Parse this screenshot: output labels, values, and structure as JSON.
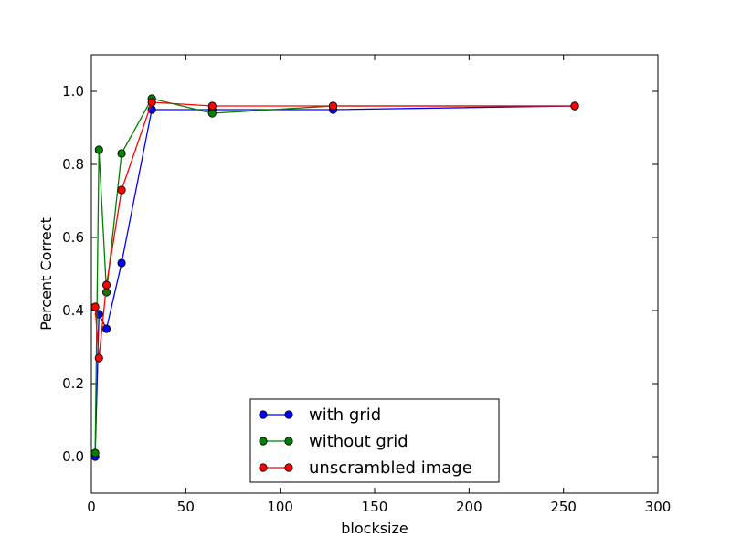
{
  "chart_data": {
    "type": "line",
    "title": "",
    "xlabel": "blocksize",
    "ylabel": "Percent Correct",
    "xlim": [
      0,
      300
    ],
    "ylim": [
      -0.1,
      1.1
    ],
    "x_ticks": [
      "0",
      "50",
      "100",
      "150",
      "200",
      "250",
      "300"
    ],
    "y_ticks": [
      "0.0",
      "0.2",
      "0.4",
      "0.6",
      "0.8",
      "1.0"
    ],
    "grid": false,
    "legend_position": "lower-center",
    "marker": "circle",
    "series": [
      {
        "name": "with grid",
        "color": "#0000ff",
        "points": [
          [
            2,
            0.0
          ],
          [
            4,
            0.39
          ],
          [
            8,
            0.35
          ],
          [
            16,
            0.53
          ],
          [
            32,
            0.95
          ],
          [
            64,
            0.95
          ],
          [
            128,
            0.95
          ],
          [
            256,
            0.96
          ]
        ]
      },
      {
        "name": "without grid",
        "color": "#008000",
        "points": [
          [
            2,
            0.01
          ],
          [
            4,
            0.84
          ],
          [
            8,
            0.45
          ],
          [
            16,
            0.83
          ],
          [
            32,
            0.98
          ],
          [
            64,
            0.94
          ],
          [
            128,
            0.96
          ],
          [
            256,
            0.96
          ]
        ]
      },
      {
        "name": "unscrambled image",
        "color": "#ff0000",
        "points": [
          [
            2,
            0.41
          ],
          [
            4,
            0.27
          ],
          [
            8,
            0.47
          ],
          [
            16,
            0.73
          ],
          [
            32,
            0.97
          ],
          [
            64,
            0.96
          ],
          [
            128,
            0.96
          ],
          [
            256,
            0.96
          ]
        ]
      }
    ]
  }
}
